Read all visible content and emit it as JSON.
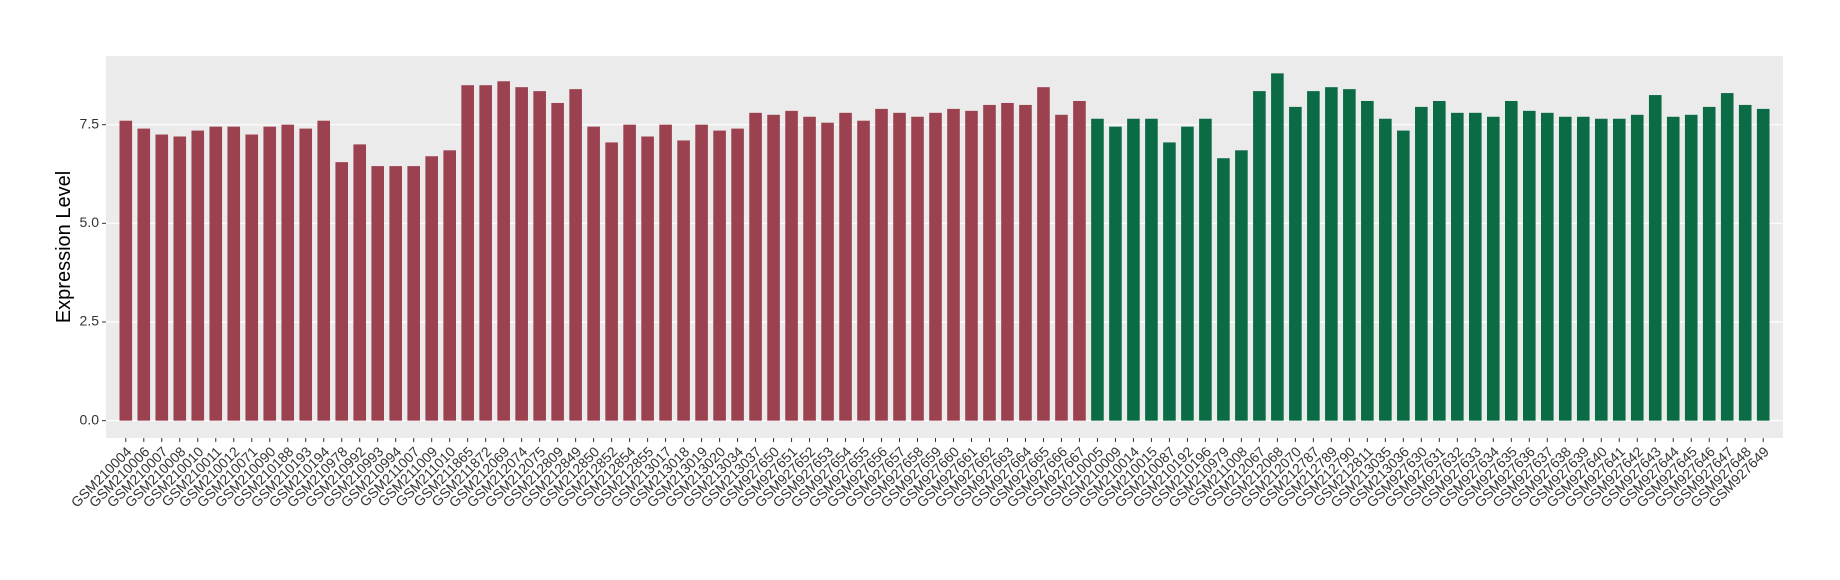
{
  "chart_data": {
    "type": "bar",
    "y_label": "Expression Level",
    "categories": [
      "GSM210004",
      "GSM210006",
      "GSM210007",
      "GSM210008",
      "GSM210010",
      "GSM210011",
      "GSM210012",
      "GSM210071",
      "GSM210090",
      "GSM210188",
      "GSM210193",
      "GSM210194",
      "GSM210978",
      "GSM210992",
      "GSM210993",
      "GSM210994",
      "GSM211007",
      "GSM211009",
      "GSM211010",
      "GSM211865",
      "GSM211872",
      "GSM212069",
      "GSM212074",
      "GSM212075",
      "GSM212809",
      "GSM212849",
      "GSM212850",
      "GSM212852",
      "GSM212854",
      "GSM212855",
      "GSM213017",
      "GSM213018",
      "GSM213019",
      "GSM213020",
      "GSM213034",
      "GSM213037",
      "GSM927650",
      "GSM927651",
      "GSM927652",
      "GSM927653",
      "GSM927654",
      "GSM927655",
      "GSM927656",
      "GSM927657",
      "GSM927658",
      "GSM927659",
      "GSM927660",
      "GSM927661",
      "GSM927662",
      "GSM927663",
      "GSM927664",
      "GSM927665",
      "GSM927666",
      "GSM927667",
      "GSM210005",
      "GSM210009",
      "GSM210014",
      "GSM210015",
      "GSM210087",
      "GSM210192",
      "GSM210196",
      "GSM210979",
      "GSM211008",
      "GSM212067",
      "GSM212068",
      "GSM212070",
      "GSM212787",
      "GSM212789",
      "GSM212790",
      "GSM212811",
      "GSM213035",
      "GSM213036",
      "GSM927630",
      "GSM927631",
      "GSM927632",
      "GSM927633",
      "GSM927634",
      "GSM927635",
      "GSM927636",
      "GSM927637",
      "GSM927638",
      "GSM927639",
      "GSM927640",
      "GSM927641",
      "GSM927642",
      "GSM927643",
      "GSM927644",
      "GSM927645",
      "GSM927646",
      "GSM927647",
      "GSM927648",
      "GSM927649"
    ],
    "series": [
      {
        "color": "#9b4150",
        "values": [
          7.6,
          7.4,
          7.25,
          7.2,
          7.35,
          7.45,
          7.45,
          7.25,
          7.45,
          7.5,
          7.4,
          7.6,
          6.55,
          7.0,
          6.45,
          6.45,
          6.45,
          6.7,
          6.85,
          8.5,
          8.5,
          8.6,
          8.45,
          8.35,
          8.05,
          8.4,
          7.45,
          7.05,
          7.5,
          7.2,
          7.5,
          7.1,
          7.5,
          7.35,
          7.4,
          7.8,
          7.75,
          7.85,
          7.7,
          7.55,
          7.8,
          7.6,
          7.9,
          7.8,
          7.7,
          7.8,
          7.9,
          7.85,
          8.0,
          8.05,
          8.0,
          8.45,
          7.75,
          8.1,
          null,
          null,
          null,
          null,
          null,
          null,
          null,
          null,
          null,
          null,
          null,
          null,
          null,
          null,
          null,
          null,
          null,
          null,
          null,
          null,
          null,
          null,
          null,
          null,
          null,
          null,
          null,
          null,
          null,
          null,
          null,
          null,
          null,
          null,
          null,
          null,
          null,
          null
        ]
      },
      {
        "color": "#0a6b45",
        "values": [
          null,
          null,
          null,
          null,
          null,
          null,
          null,
          null,
          null,
          null,
          null,
          null,
          null,
          null,
          null,
          null,
          null,
          null,
          null,
          null,
          null,
          null,
          null,
          null,
          null,
          null,
          null,
          null,
          null,
          null,
          null,
          null,
          null,
          null,
          null,
          null,
          null,
          null,
          null,
          null,
          null,
          null,
          null,
          null,
          null,
          null,
          null,
          null,
          null,
          null,
          null,
          null,
          null,
          null,
          7.65,
          7.45,
          7.65,
          7.65,
          7.05,
          7.45,
          7.65,
          6.65,
          6.85,
          8.35,
          8.8,
          7.95,
          8.35,
          8.45,
          8.4,
          8.1,
          7.65,
          7.35,
          7.95,
          8.1,
          7.8,
          7.8,
          7.7,
          8.1,
          7.85,
          7.8,
          7.7,
          7.7,
          7.65,
          7.65,
          7.75,
          8.25,
          7.7,
          7.75,
          7.95,
          8.3,
          8.0,
          7.9
        ]
      }
    ],
    "ylim": [
      -0.44,
      9.24
    ],
    "yticks": [
      {
        "value": 0,
        "label": "0.0"
      },
      {
        "value": 2.5,
        "label": "2.5"
      },
      {
        "value": 5,
        "label": "5.0"
      },
      {
        "value": 7.5,
        "label": "7.5"
      }
    ],
    "grid": true
  }
}
